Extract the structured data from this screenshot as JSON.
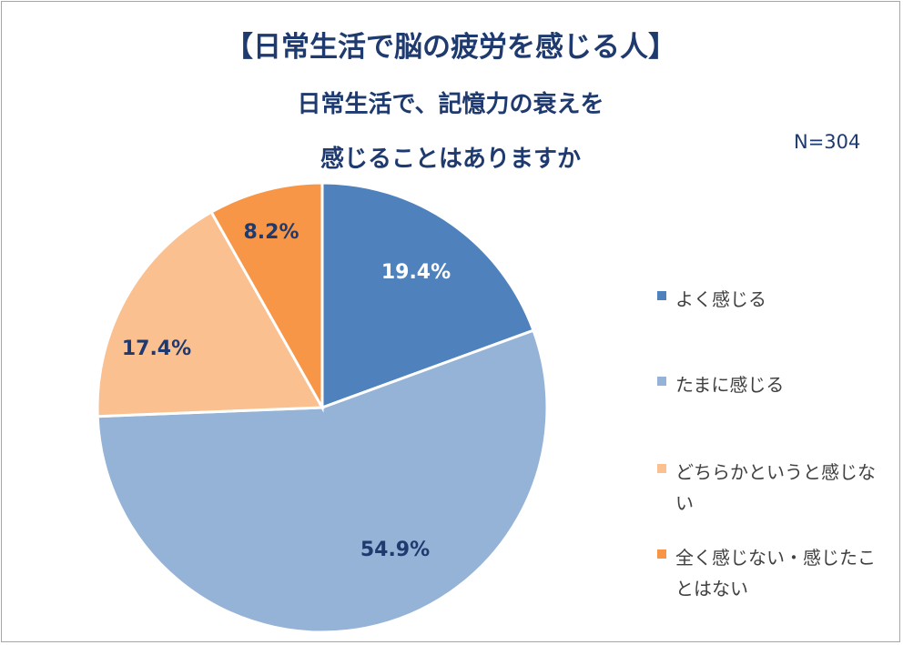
{
  "header": {
    "title": "【日常生活で脳の疲労を感じる人】",
    "subtitle_line1": "日常生活で、記憶力の衰えを",
    "subtitle_line2": "感じることはありますか",
    "sample_size": "N=304"
  },
  "chart_data": {
    "type": "pie",
    "title": "【日常生活で脳の疲労を感じる人】",
    "subtitle": "日常生活で、記憶力の衰えを感じることはありますか",
    "note": "N=304",
    "categories": [
      "よく感じる",
      "たまに感じる",
      "どちらかというと感じない",
      "全く感じない・感じたことはない"
    ],
    "values": [
      19.4,
      54.9,
      17.4,
      8.2
    ],
    "data_labels": [
      "19.4%",
      "54.9%",
      "17.4%",
      "8.2%"
    ],
    "colors": [
      "#4f81bd",
      "#95b3d7",
      "#fac090",
      "#f79646"
    ],
    "label_colors": [
      "#ffffff",
      "#1f3a6e",
      "#1f3a6e",
      "#1f3a6e"
    ],
    "start_angle": "12 o'clock",
    "direction": "clockwise",
    "legend_position": "right"
  },
  "legend": [
    {
      "label": "よく感じる",
      "color": "#4f81bd"
    },
    {
      "label": "たまに感じる",
      "color": "#95b3d7"
    },
    {
      "label": "どちらかというと感じない",
      "color": "#fac090"
    },
    {
      "label": "全く感じない・感じたことはない",
      "color": "#f79646"
    }
  ]
}
